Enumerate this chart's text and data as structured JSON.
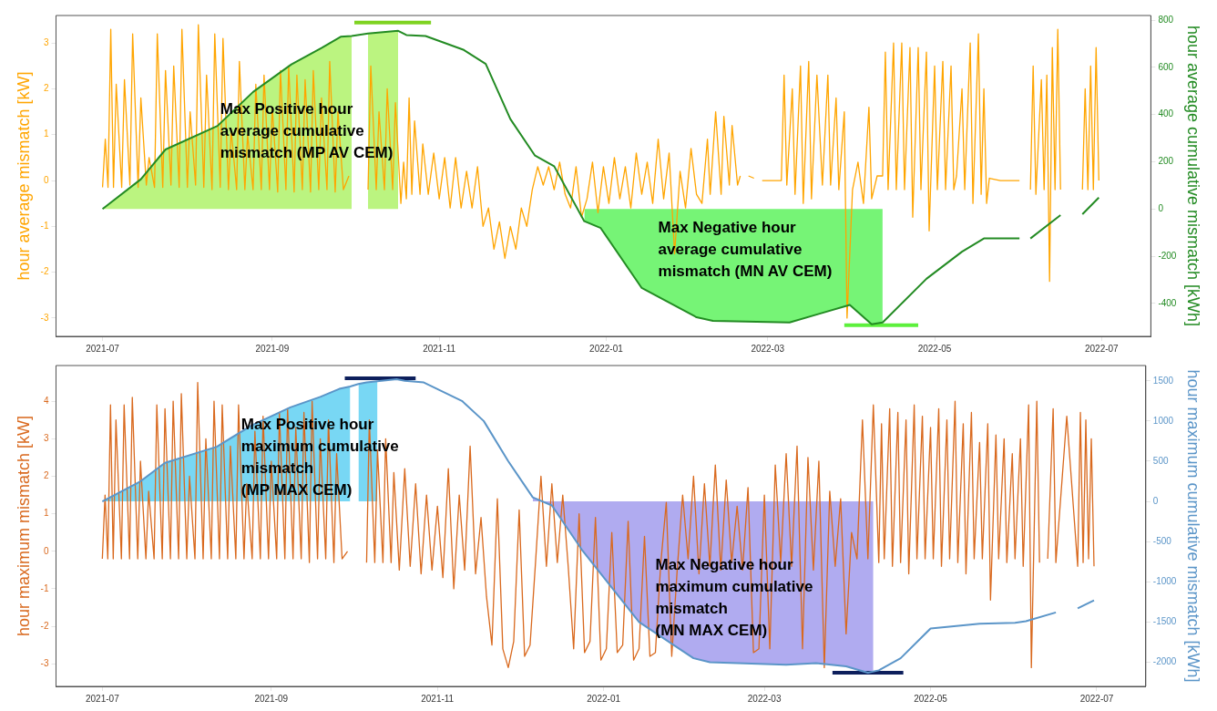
{
  "chart_data": [
    {
      "type": "line",
      "ylabel": "hour average mismatch [kW]",
      "y2label": "hour average cumulative mismatch [kWh]",
      "xlim": [
        "2021-06-14",
        "2022-07-19"
      ],
      "xticks": [
        "2021-07",
        "2021-09",
        "2021-11",
        "2022-01",
        "2022-03",
        "2022-05",
        "2022-07"
      ],
      "ylim": [
        -3.4,
        3.6
      ],
      "yticks": [
        -3,
        -2,
        -1,
        0,
        1,
        2,
        3
      ],
      "y2lim": [
        -540,
        820
      ],
      "y2ticks": [
        -400,
        -200,
        0,
        200,
        400,
        600,
        800
      ],
      "grid": false,
      "annotations": [
        "Max Positive hour average cumulative mismatch (MP AV CEM)",
        "Max Negative hour average cumulative mismatch (MN AV CEM)"
      ],
      "series": [
        {
          "type": "line",
          "color": "#ffa500",
          "x": [
            "2021-07-01",
            "2021-07-02",
            "2021-07-03",
            "2021-07-04",
            "2021-07-05",
            "2021-07-06",
            "2021-07-08",
            "2021-07-09",
            "2021-07-11",
            "2021-07-12",
            "2021-07-14",
            "2021-07-15",
            "2021-07-17",
            "2021-07-18",
            "2021-07-20",
            "2021-07-21",
            "2021-07-23",
            "2021-07-24",
            "2021-07-26",
            "2021-07-27",
            "2021-07-29",
            "2021-07-30",
            "2021-08-01",
            "2021-08-02",
            "2021-08-04",
            "2021-08-05",
            "2021-08-07",
            "2021-08-08",
            "2021-08-10",
            "2021-08-11",
            "2021-08-13",
            "2021-08-14",
            "2021-08-16",
            "2021-08-17",
            "2021-08-19",
            "2021-08-20",
            "2021-08-22",
            "2021-08-23",
            "2021-08-25",
            "2021-08-26",
            "2021-08-28",
            "2021-08-29",
            "2021-08-31",
            "2021-09-01",
            "2021-09-03",
            "2021-09-04",
            "2021-09-06",
            "2021-09-07",
            "2021-09-09",
            "2021-09-10",
            "2021-09-12",
            "2021-09-13",
            "2021-09-15",
            "2021-09-16",
            "2021-09-18",
            "2021-09-19",
            "2021-09-21",
            "2021-09-22",
            "2021-09-24",
            "2021-09-25",
            "2021-09-27",
            "2021-09-29",
            "2021-10-02",
            "2021-10-06",
            "2021-10-07",
            "2021-10-09",
            "2021-10-10",
            "2021-10-12",
            "2021-10-13",
            "2021-10-15",
            "2021-10-16",
            "2021-10-18",
            "2021-10-19",
            "2021-10-20",
            "2021-10-21",
            "2021-10-22",
            "2021-10-23",
            "2021-10-25",
            "2021-10-26",
            "2021-10-28",
            "2021-10-30",
            "2021-11-01",
            "2021-11-03",
            "2021-11-05",
            "2021-11-07",
            "2021-11-09",
            "2021-11-11",
            "2021-11-13",
            "2021-11-15",
            "2021-11-17",
            "2021-11-19",
            "2021-11-21",
            "2021-11-23",
            "2021-11-25",
            "2021-11-27",
            "2021-11-29",
            "2021-12-01",
            "2021-12-03",
            "2021-12-05",
            "2021-12-07",
            "2021-12-09",
            "2021-12-11",
            "2021-12-13",
            "2021-12-15",
            "2021-12-17",
            "2021-12-19",
            "2021-12-21",
            "2021-12-23",
            "2021-12-25",
            "2021-12-27",
            "2021-12-29",
            "2021-12-31",
            "2022-01-02",
            "2022-01-04",
            "2022-01-06",
            "2022-01-08",
            "2022-01-10",
            "2022-01-12",
            "2022-01-14",
            "2022-01-16",
            "2022-01-18",
            "2022-01-20",
            "2022-01-22",
            "2022-01-24",
            "2022-01-26",
            "2022-01-28",
            "2022-01-30",
            "2022-02-01",
            "2022-02-03",
            "2022-02-05",
            "2022-02-07",
            "2022-02-08",
            "2022-02-10",
            "2022-02-12",
            "2022-02-13",
            "2022-02-15",
            "2022-02-16",
            "2022-02-18",
            "2022-02-19",
            "2022-02-20",
            "2022-02-22",
            "2022-02-24",
            "2022-02-25",
            "2022-02-27",
            "2022-03-06",
            "2022-03-07",
            "2022-03-08",
            "2022-03-10",
            "2022-03-11",
            "2022-03-13",
            "2022-03-14",
            "2022-03-16",
            "2022-03-17",
            "2022-03-19",
            "2022-03-21",
            "2022-03-23",
            "2022-03-24",
            "2022-03-26",
            "2022-03-27",
            "2022-03-29",
            "2022-03-30",
            "2022-04-01",
            "2022-04-03",
            "2022-04-05",
            "2022-04-07",
            "2022-04-08",
            "2022-04-10",
            "2022-04-12",
            "2022-04-13",
            "2022-04-14",
            "2022-04-16",
            "2022-04-17",
            "2022-04-19",
            "2022-04-20",
            "2022-04-22",
            "2022-04-23",
            "2022-04-25",
            "2022-04-26",
            "2022-04-28",
            "2022-04-29",
            "2022-05-01",
            "2022-05-02",
            "2022-05-04",
            "2022-05-05",
            "2022-05-07",
            "2022-05-08",
            "2022-05-09",
            "2022-05-11",
            "2022-05-12",
            "2022-05-14",
            "2022-05-15",
            "2022-05-17",
            "2022-05-18",
            "2022-05-19",
            "2022-05-20",
            "2022-05-21",
            "2022-05-25",
            "2022-06-01",
            "2022-06-03",
            "2022-06-05",
            "2022-06-06",
            "2022-06-07",
            "2022-06-09",
            "2022-06-10",
            "2022-06-11",
            "2022-06-12",
            "2022-06-13",
            "2022-06-14",
            "2022-06-15",
            "2022-06-16",
            "2022-06-20",
            "2022-06-24",
            "2022-06-25",
            "2022-06-26",
            "2022-06-27",
            "2022-06-28",
            "2022-06-29",
            "2022-06-30"
          ],
          "values": [
            -0.15,
            0.9,
            -0.15,
            3.3,
            -0.15,
            2.1,
            -0.15,
            2.2,
            -0.1,
            3.2,
            -0.15,
            1.8,
            -0.1,
            0.5,
            -0.15,
            3.2,
            -0.15,
            2.4,
            -0.1,
            2.5,
            -0.15,
            3.3,
            -0.15,
            1.5,
            -0.1,
            3.4,
            -0.15,
            2.3,
            -0.2,
            3.2,
            -0.15,
            3.1,
            -0.2,
            1.1,
            -0.2,
            2.6,
            -0.2,
            1.0,
            -0.2,
            2.1,
            -0.2,
            2.3,
            -0.2,
            1.6,
            -0.25,
            2.4,
            -0.2,
            2.5,
            -0.25,
            2.3,
            -0.2,
            2.2,
            -0.25,
            2.4,
            -0.2,
            1.8,
            -0.2,
            2.6,
            -0.25,
            1.5,
            -0.2,
            0.1,
            null,
            -0.2,
            2.5,
            -0.2,
            1.5,
            -0.2,
            2.0,
            -0.2,
            1.7,
            -0.5,
            0.4,
            -0.4,
            1.8,
            -0.3,
            1.3,
            -0.3,
            0.8,
            -0.3,
            0.6,
            -0.4,
            0.5,
            -0.6,
            0.5,
            -0.6,
            0.2,
            -0.6,
            0.3,
            -1.0,
            -0.6,
            -1.5,
            -0.9,
            -1.7,
            -1.0,
            -1.5,
            -0.6,
            -1.0,
            -0.2,
            0.3,
            -0.1,
            0.3,
            -0.2,
            0.4,
            -0.3,
            -0.6,
            0.3,
            -0.8,
            -0.4,
            0.4,
            -0.7,
            0.3,
            -0.5,
            0.5,
            -0.4,
            0.3,
            -0.6,
            0.6,
            -0.3,
            0.4,
            -0.5,
            0.9,
            -0.4,
            0.6,
            -1.6,
            0.2,
            -0.6,
            0.7,
            -0.3,
            -0.5,
            0.9,
            -0.3,
            1.5,
            -0.3,
            1.4,
            -0.1,
            1.2,
            -0.1,
            0.1,
            null,
            0.1,
            0.05,
            null,
            0.0,
            0.0,
            2.3,
            -0.1,
            2.0,
            -0.3,
            2.5,
            -0.5,
            2.6,
            -0.4,
            2.3,
            -0.1,
            2.3,
            -0.1,
            1.8,
            -0.2,
            1.5,
            -3.0,
            -0.2,
            0.4,
            -0.5,
            1.6,
            -0.4,
            0.1,
            0.1,
            2.8,
            -0.2,
            3.0,
            -0.2,
            3.0,
            -0.2,
            2.9,
            -0.8,
            2.9,
            -0.2,
            2.8,
            -1.1,
            2.5,
            -0.2,
            2.6,
            -0.2,
            2.5,
            -0.2,
            0.1,
            2.0,
            -0.2,
            3.0,
            -0.5,
            3.2,
            -0.3,
            2.0,
            -0.5,
            0.05,
            0.0,
            0.0,
            null,
            -0.2,
            2.5,
            -0.3,
            2.2,
            -0.2,
            2.3,
            -2.2,
            2.9,
            -0.2,
            3.3,
            -0.2,
            null,
            -0.2,
            2.0,
            -0.2,
            2.5,
            -0.2,
            2.9,
            0.0
          ]
        },
        {
          "type": "area",
          "axis": "y2",
          "color": "#9ef04a",
          "x": [
            "2021-07-01",
            "2021-07-15",
            "2021-07-24",
            "2021-08-12",
            "2021-08-25",
            "2021-09-08",
            "2021-09-19",
            "2021-09-26",
            "2021-09-30",
            "2021-10-03",
            "2021-10-06",
            "2021-10-17"
          ],
          "values": [
            0,
            126,
            252,
            352,
            496,
            613,
            682,
            730,
            733,
            null,
            744,
            755
          ]
        },
        {
          "type": "area",
          "axis": "y2",
          "color": "#3cf03c",
          "x": [
            "2021-12-24",
            "2021-12-30",
            "2022-01-14",
            "2022-02-03",
            "2022-02-09",
            "2022-03-09",
            "2022-03-20",
            "2022-03-31",
            "2022-04-08",
            "2022-04-12"
          ],
          "values": [
            -52,
            -81,
            -335,
            -459,
            -474,
            -481,
            -444,
            -407,
            -489,
            -481
          ]
        },
        {
          "type": "line",
          "axis": "y2",
          "color": "#238b23",
          "x": [
            "2021-07-01",
            "2021-07-15",
            "2021-07-24",
            "2021-08-12",
            "2021-08-25",
            "2021-09-08",
            "2021-09-19",
            "2021-09-26",
            "2021-09-30",
            "2021-10-06",
            "2021-10-17",
            "2021-10-20",
            "2021-10-27",
            "2021-11-10",
            "2021-11-18",
            "2021-11-27",
            "2021-12-06",
            "2021-12-13",
            "2021-12-24",
            "2021-12-30",
            "2022-01-14",
            "2022-02-03",
            "2022-02-09",
            "2022-03-09",
            "2022-03-20",
            "2022-03-31",
            "2022-04-08",
            "2022-04-12",
            "2022-04-28",
            "2022-05-11",
            "2022-05-19",
            "2022-06-01",
            "2022-06-03",
            "2022-06-05",
            "2022-06-16",
            "2022-06-20",
            "2022-06-24",
            "2022-06-30"
          ],
          "values": [
            0,
            126,
            252,
            352,
            496,
            613,
            682,
            730,
            733,
            744,
            755,
            737,
            733,
            674,
            615,
            381,
            226,
            181,
            -52,
            -81,
            -335,
            -459,
            -474,
            -481,
            -444,
            -407,
            -489,
            -481,
            -296,
            -181,
            -125,
            -125,
            null,
            -125,
            -26,
            null,
            -22,
            48
          ]
        },
        {
          "type": "line",
          "axis": "y2",
          "color": "#7ed321",
          "x": [
            "2021-10-01",
            "2021-10-29"
          ],
          "values": [
            790,
            790
          ]
        },
        {
          "type": "line",
          "axis": "y2",
          "color": "#5cf03c",
          "x": [
            "2022-03-29",
            "2022-04-25"
          ],
          "values": [
            -493,
            -493
          ]
        }
      ]
    },
    {
      "type": "line",
      "ylabel": "hour maximum mismatch [kW]",
      "y2label": "hour maximum cumulative mismatch [kWh]",
      "xlim": [
        "2021-06-14",
        "2022-07-19"
      ],
      "xticks": [
        "2021-07",
        "2021-09",
        "2021-11",
        "2022-01",
        "2022-03",
        "2022-05",
        "2022-07"
      ],
      "ylim": [
        -3.6,
        4.95
      ],
      "yticks": [
        -3,
        -2,
        -1,
        0,
        1,
        2,
        3,
        4
      ],
      "y2lim": [
        -2300,
        1690
      ],
      "y2ticks": [
        -2000,
        -1500,
        -1000,
        -500,
        0,
        500,
        1000,
        1500
      ],
      "grid": false,
      "annotations": [
        "Max Positive hour maximum cumulative mismatch (MP MAX CEM)",
        "Max Negative hour maximum cumulative mismatch (MN MAX CEM)"
      ],
      "series": [
        {
          "type": "line",
          "color": "#d9691e",
          "x": [
            "2021-07-01",
            "2021-07-02",
            "2021-07-03",
            "2021-07-04",
            "2021-07-05",
            "2021-07-06",
            "2021-07-08",
            "2021-07-09",
            "2021-07-11",
            "2021-07-12",
            "2021-07-14",
            "2021-07-15",
            "2021-07-17",
            "2021-07-18",
            "2021-07-20",
            "2021-07-21",
            "2021-07-23",
            "2021-07-24",
            "2021-07-26",
            "2021-07-27",
            "2021-07-29",
            "2021-07-30",
            "2021-08-01",
            "2021-08-02",
            "2021-08-04",
            "2021-08-05",
            "2021-08-07",
            "2021-08-08",
            "2021-08-10",
            "2021-08-11",
            "2021-08-13",
            "2021-08-14",
            "2021-08-16",
            "2021-08-17",
            "2021-08-19",
            "2021-08-20",
            "2021-08-22",
            "2021-08-23",
            "2021-08-25",
            "2021-08-26",
            "2021-08-28",
            "2021-08-29",
            "2021-08-31",
            "2021-09-01",
            "2021-09-03",
            "2021-09-04",
            "2021-09-06",
            "2021-09-07",
            "2021-09-09",
            "2021-09-10",
            "2021-09-12",
            "2021-09-13",
            "2021-09-15",
            "2021-09-16",
            "2021-09-18",
            "2021-09-19",
            "2021-09-21",
            "2021-09-22",
            "2021-09-24",
            "2021-09-25",
            "2021-09-27",
            "2021-09-29",
            "2021-10-02",
            "2021-10-06",
            "2021-10-07",
            "2021-10-09",
            "2021-10-10",
            "2021-10-12",
            "2021-10-13",
            "2021-10-15",
            "2021-10-16",
            "2021-10-18",
            "2021-10-20",
            "2021-10-22",
            "2021-10-24",
            "2021-10-26",
            "2021-10-28",
            "2021-10-30",
            "2021-11-01",
            "2021-11-03",
            "2021-11-05",
            "2021-11-07",
            "2021-11-09",
            "2021-11-11",
            "2021-11-13",
            "2021-11-15",
            "2021-11-17",
            "2021-11-19",
            "2021-11-21",
            "2021-11-23",
            "2021-11-25",
            "2021-11-27",
            "2021-11-29",
            "2021-12-01",
            "2021-12-03",
            "2021-12-05",
            "2021-12-07",
            "2021-12-09",
            "2021-12-11",
            "2021-12-13",
            "2021-12-15",
            "2021-12-17",
            "2021-12-19",
            "2021-12-21",
            "2021-12-23",
            "2021-12-25",
            "2021-12-27",
            "2021-12-29",
            "2021-12-31",
            "2022-01-02",
            "2022-01-04",
            "2022-01-06",
            "2022-01-08",
            "2022-01-10",
            "2022-01-12",
            "2022-01-14",
            "2022-01-16",
            "2022-01-18",
            "2022-01-20",
            "2022-01-22",
            "2022-01-24",
            "2022-01-26",
            "2022-01-28",
            "2022-01-30",
            "2022-02-01",
            "2022-02-03",
            "2022-02-05",
            "2022-02-07",
            "2022-02-09",
            "2022-02-11",
            "2022-02-13",
            "2022-02-15",
            "2022-02-17",
            "2022-02-19",
            "2022-02-21",
            "2022-02-23",
            "2022-02-25",
            "2022-02-27",
            "2022-03-01",
            "2022-03-03",
            "2022-03-05",
            "2022-03-07",
            "2022-03-09",
            "2022-03-11",
            "2022-03-13",
            "2022-03-15",
            "2022-03-17",
            "2022-03-19",
            "2022-03-21",
            "2022-03-23",
            "2022-03-25",
            "2022-03-27",
            "2022-03-29",
            "2022-03-31",
            "2022-04-02",
            "2022-04-04",
            "2022-04-06",
            "2022-04-08",
            "2022-04-10",
            "2022-04-12",
            "2022-04-13",
            "2022-04-14",
            "2022-04-16",
            "2022-04-17",
            "2022-04-19",
            "2022-04-20",
            "2022-04-22",
            "2022-04-23",
            "2022-04-25",
            "2022-04-26",
            "2022-04-28",
            "2022-04-29",
            "2022-05-01",
            "2022-05-02",
            "2022-05-04",
            "2022-05-05",
            "2022-05-07",
            "2022-05-08",
            "2022-05-10",
            "2022-05-11",
            "2022-05-13",
            "2022-05-14",
            "2022-05-16",
            "2022-05-17",
            "2022-05-19",
            "2022-05-20",
            "2022-05-22",
            "2022-05-23",
            "2022-05-25",
            "2022-05-26",
            "2022-05-28",
            "2022-05-29",
            "2022-05-31",
            "2022-06-01",
            "2022-06-03",
            "2022-06-04",
            "2022-06-06",
            "2022-06-07",
            "2022-06-09",
            "2022-06-10",
            "2022-06-12",
            "2022-06-13",
            "2022-06-15",
            "2022-06-16",
            "2022-06-20",
            "2022-06-24",
            "2022-06-25",
            "2022-06-26",
            "2022-06-27",
            "2022-06-28",
            "2022-06-29",
            "2022-06-30"
          ],
          "values": [
            -0.2,
            1.5,
            -0.2,
            3.9,
            -0.2,
            3.5,
            -0.2,
            3.9,
            -0.2,
            4.1,
            -0.2,
            2.4,
            -0.2,
            1.6,
            -0.2,
            3.9,
            -0.2,
            3.8,
            -0.2,
            4.0,
            -0.2,
            4.2,
            -0.2,
            2.0,
            -0.2,
            4.5,
            -0.2,
            3.0,
            -0.2,
            4.0,
            -0.2,
            3.9,
            -0.2,
            2.8,
            -0.2,
            3.9,
            -0.2,
            1.8,
            -0.2,
            3.2,
            -0.2,
            3.6,
            -0.2,
            2.4,
            -0.2,
            3.7,
            -0.2,
            3.8,
            -0.2,
            3.3,
            -0.2,
            3.7,
            -0.3,
            4.0,
            -0.2,
            3.0,
            -0.2,
            3.5,
            -0.3,
            2.6,
            -0.2,
            0.0,
            null,
            -0.3,
            3.5,
            -0.3,
            2.7,
            -0.3,
            3.0,
            -0.3,
            2.1,
            -0.5,
            2.2,
            -0.4,
            1.8,
            -0.6,
            1.5,
            -0.5,
            1.2,
            -0.7,
            2.2,
            -1.0,
            1.5,
            -0.5,
            2.8,
            -0.6,
            0.9,
            -1.2,
            -2.5,
            1.4,
            -2.6,
            -3.1,
            -2.4,
            1.1,
            -2.8,
            -2.5,
            -0.3,
            2.0,
            -0.4,
            1.8,
            -0.3,
            1.5,
            -0.4,
            -2.6,
            1.0,
            -2.7,
            -2.4,
            0.9,
            -2.9,
            -2.6,
            0.5,
            -2.7,
            -2.5,
            0.8,
            -2.9,
            -2.6,
            0.4,
            -2.8,
            -2.7,
            -0.3,
            1.3,
            -2.8,
            -0.5,
            1.5,
            -0.2,
            2.0,
            -0.6,
            1.8,
            -0.4,
            2.3,
            -0.5,
            1.9,
            -0.3,
            1.2,
            -0.5,
            1.7,
            -2.7,
            -2.6,
            1.5,
            -2.6,
            2.3,
            -0.3,
            2.6,
            -0.4,
            2.8,
            -2.6,
            2.5,
            -0.5,
            2.4,
            -3.1,
            1.6,
            -0.4,
            1.4,
            -2.2,
            0.5,
            -0.2,
            3.5,
            -0.2,
            3.9,
            -0.3,
            3.4,
            -0.2,
            3.8,
            -0.4,
            3.7,
            -0.3,
            3.5,
            -0.6,
            3.9,
            -0.2,
            3.6,
            -0.2,
            3.3,
            -0.2,
            3.8,
            -0.4,
            3.5,
            -0.2,
            4.0,
            -0.3,
            3.4,
            -0.6,
            3.7,
            -0.2,
            2.9,
            -0.2,
            3.4,
            -1.3,
            3.1,
            -0.2,
            3.0,
            -0.3,
            2.6,
            -0.2,
            3.0,
            -0.4,
            3.9,
            -3.1,
            4.0,
            -0.3,
            null,
            -0.2,
            3.8,
            -0.3,
            3.6,
            -0.4,
            3.7,
            -0.3,
            3.5,
            -0.2,
            3.0,
            -0.4
          ]
        },
        {
          "type": "area",
          "axis": "y2",
          "color": "#3fc6f0",
          "x": [
            "2021-07-01",
            "2021-07-15",
            "2021-07-24",
            "2021-08-12",
            "2021-08-25",
            "2021-09-08",
            "2021-09-19",
            "2021-09-26",
            "2021-09-30",
            "2021-10-01",
            "2021-10-03",
            "2021-10-10"
          ],
          "values": [
            0,
            250,
            480,
            680,
            950,
            1170,
            1300,
            1400,
            1430,
            null,
            1460,
            1500
          ]
        },
        {
          "type": "area",
          "axis": "y2",
          "color": "#8f88ea",
          "x": [
            "2021-12-06",
            "2021-12-13",
            "2021-12-24",
            "2022-01-14",
            "2022-02-03",
            "2022-02-09",
            "2022-03-09",
            "2022-03-20",
            "2022-03-31",
            "2022-04-08",
            "2022-04-10"
          ],
          "values": [
            50,
            -50,
            -600,
            -1500,
            -1950,
            -2000,
            -2030,
            -2010,
            -2050,
            -2130,
            -2120
          ]
        },
        {
          "type": "line",
          "axis": "y2",
          "color": "#5b95c8",
          "x": [
            "2021-07-01",
            "2021-07-15",
            "2021-07-24",
            "2021-08-12",
            "2021-08-25",
            "2021-09-08",
            "2021-09-19",
            "2021-09-26",
            "2021-09-30",
            "2021-10-03",
            "2021-10-06",
            "2021-10-17",
            "2021-10-20",
            "2021-10-27",
            "2021-11-10",
            "2021-11-18",
            "2021-11-27",
            "2021-12-06",
            "2021-12-13",
            "2021-12-24",
            "2022-01-14",
            "2022-02-03",
            "2022-02-09",
            "2022-03-09",
            "2022-03-20",
            "2022-03-31",
            "2022-04-08",
            "2022-04-12",
            "2022-04-20",
            "2022-05-01",
            "2022-05-19",
            "2022-06-01",
            "2022-06-05",
            "2022-06-16",
            "2022-06-20",
            "2022-06-24",
            "2022-06-30"
          ],
          "values": [
            0,
            250,
            480,
            680,
            950,
            1170,
            1300,
            1400,
            1430,
            1460,
            1480,
            1520,
            1500,
            1480,
            1250,
            1000,
            500,
            50,
            -50,
            -600,
            -1500,
            -1950,
            -2000,
            -2030,
            -2010,
            -2050,
            -2130,
            -2100,
            -1950,
            -1580,
            -1520,
            -1510,
            -1490,
            -1380,
            null,
            -1330,
            -1230
          ]
        },
        {
          "type": "line",
          "axis": "y2",
          "color": "#0d1f5c",
          "x": [
            "2021-09-28",
            "2021-10-24"
          ],
          "values": [
            1530,
            1530
          ]
        },
        {
          "type": "line",
          "axis": "y2",
          "color": "#0d1f5c",
          "x": [
            "2022-03-26",
            "2022-04-21"
          ],
          "values": [
            -2130,
            -2130
          ]
        }
      ]
    }
  ]
}
